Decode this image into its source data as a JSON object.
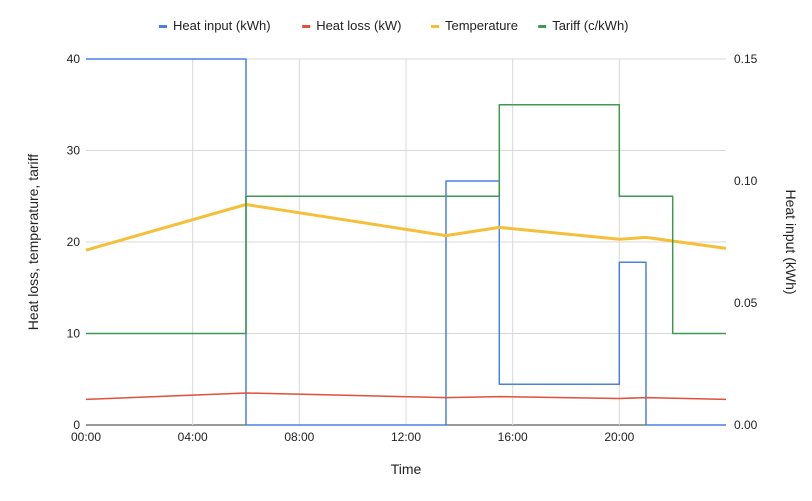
{
  "chart_data": {
    "type": "line",
    "xlabel": "Time",
    "ylabel_left": "Heat loss, temperature, tariff",
    "ylabel_right": "Heat input (kWh)",
    "x_unit": "hours",
    "xlim": [
      0,
      24
    ],
    "ylim_left": [
      0,
      40
    ],
    "ylim_right": [
      0,
      0.15
    ],
    "x_ticks": [
      {
        "value": 0,
        "label": "00:00"
      },
      {
        "value": 4,
        "label": "04:00"
      },
      {
        "value": 8,
        "label": "08:00"
      },
      {
        "value": 12,
        "label": "12:00"
      },
      {
        "value": 16,
        "label": "16:00"
      },
      {
        "value": 20,
        "label": "20:00"
      }
    ],
    "y_ticks_left": [
      {
        "value": 0,
        "label": "0"
      },
      {
        "value": 10,
        "label": "10"
      },
      {
        "value": 20,
        "label": "20"
      },
      {
        "value": 30,
        "label": "30"
      },
      {
        "value": 40,
        "label": "40"
      }
    ],
    "y_ticks_right": [
      {
        "value": 0,
        "label": "0.00"
      },
      {
        "value": 0.05,
        "label": "0.05"
      },
      {
        "value": 0.1,
        "label": "0.10"
      },
      {
        "value": 0.15,
        "label": "0.15"
      }
    ],
    "grid": true,
    "legend_position": "top",
    "series": [
      {
        "name": "Heat input (kWh)",
        "axis": "right",
        "color": "#4a80e0",
        "stroke_width": 1.5,
        "points": [
          [
            0,
            0.15
          ],
          [
            6,
            0.15
          ],
          [
            6,
            0
          ],
          [
            13.5,
            0
          ],
          [
            13.5,
            0.1
          ],
          [
            15.5,
            0.1
          ],
          [
            15.5,
            0.0167
          ],
          [
            20,
            0.0167
          ],
          [
            20,
            0.0667
          ],
          [
            21,
            0.0667
          ],
          [
            21,
            0
          ],
          [
            24,
            0
          ]
        ]
      },
      {
        "name": "Heat loss (kW)",
        "axis": "left",
        "color": "#e0503a",
        "stroke_width": 1.5,
        "points": [
          [
            0,
            2.8
          ],
          [
            6,
            3.5
          ],
          [
            13.5,
            3.0
          ],
          [
            15.5,
            3.1
          ],
          [
            20,
            2.9
          ],
          [
            21,
            3.0
          ],
          [
            24,
            2.8
          ]
        ]
      },
      {
        "name": "Temperature",
        "axis": "left",
        "color": "#f5bf3a",
        "stroke_width": 3,
        "points": [
          [
            0,
            19.1
          ],
          [
            6,
            24.1
          ],
          [
            13.5,
            20.7
          ],
          [
            15.5,
            21.6
          ],
          [
            20,
            20.3
          ],
          [
            21,
            20.5
          ],
          [
            24,
            19.3
          ]
        ]
      },
      {
        "name": "Tariff (c/kWh)",
        "axis": "left",
        "color": "#3d9a50",
        "stroke_width": 1.5,
        "points": [
          [
            0,
            10
          ],
          [
            6,
            10
          ],
          [
            6,
            25
          ],
          [
            15.5,
            25
          ],
          [
            15.5,
            35
          ],
          [
            20,
            35
          ],
          [
            20,
            25
          ],
          [
            22,
            25
          ],
          [
            22,
            10
          ],
          [
            24,
            10
          ]
        ]
      }
    ]
  }
}
